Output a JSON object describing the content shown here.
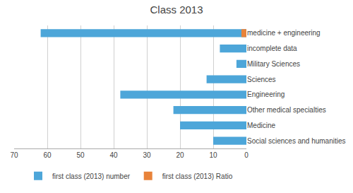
{
  "chart_data": {
    "type": "bar",
    "orientation": "horizontal",
    "title": "Class 2013",
    "categories": [
      "Social sciences and humanities",
      "Medicine",
      "Other medical specialties",
      "Engineering",
      "Sciences",
      "Military Sciences",
      "incomplete data",
      "medicine + engineering"
    ],
    "series": [
      {
        "name": "first class (2013) number",
        "color": "#4da6d9",
        "values": [
          10,
          20,
          22,
          38,
          12,
          3,
          8,
          62
        ]
      },
      {
        "name": "first class (2013) Ratio",
        "color": "#e8833a",
        "values": [
          0,
          0,
          0,
          0,
          0,
          0,
          0,
          1.5
        ]
      }
    ],
    "xlim": [
      70,
      0
    ],
    "xticks": [
      70,
      60,
      50,
      40,
      30,
      20,
      10,
      0
    ],
    "grid": true,
    "legend": "bottom"
  }
}
